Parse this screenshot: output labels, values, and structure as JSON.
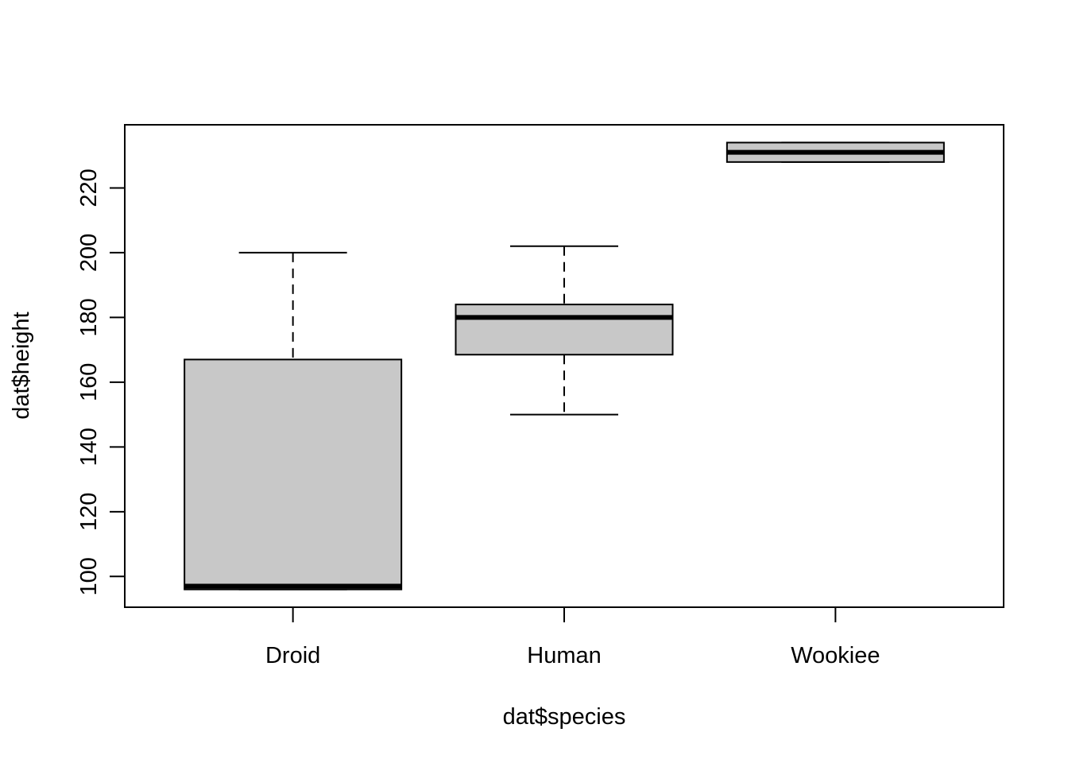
{
  "chart_data": {
    "type": "boxplot",
    "xlabel": "dat$species",
    "ylabel": "dat$height",
    "categories": [
      "Droid",
      "Human",
      "Wookiee"
    ],
    "boxes": [
      {
        "category": "Droid",
        "whisker_low": 96,
        "q1": 96,
        "median": 97,
        "q3": 167,
        "whisker_high": 200
      },
      {
        "category": "Human",
        "whisker_low": 150,
        "q1": 168.5,
        "median": 180,
        "q3": 184,
        "whisker_high": 202
      },
      {
        "category": "Wookiee",
        "whisker_low": 228,
        "q1": 228,
        "median": 231,
        "q3": 234,
        "whisker_high": 234
      }
    ],
    "y_ticks": [
      100,
      120,
      140,
      160,
      180,
      200,
      220
    ],
    "ylim": [
      90.5,
      239.5
    ],
    "box_fill": "#c8c8c8",
    "grid": false,
    "legend": "none"
  }
}
